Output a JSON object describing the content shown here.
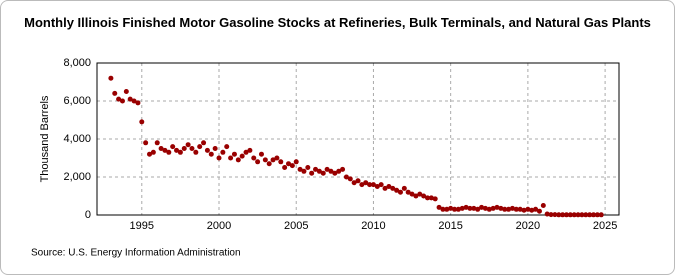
{
  "chart_data": {
    "type": "scatter",
    "title": "Monthly Illinois Finished Motor Gasoline Stocks at Refineries, Bulk Terminals, and Natural Gas Plants",
    "y_label": "Thousand Barrels",
    "source": "Source: U.S. Energy Information Administration",
    "xlim": [
      1992.1,
      2025.9
    ],
    "xticks": [
      1995,
      2000,
      2005,
      2010,
      2015,
      2020,
      2025
    ],
    "ylim": [
      0,
      8000
    ],
    "yticks": [
      0,
      {
        "value": 2000,
        "label": "2,000"
      },
      {
        "value": 4000,
        "label": "4,000"
      },
      {
        "value": 6000,
        "label": "6,000"
      },
      {
        "value": 8000,
        "label": "8,000"
      }
    ],
    "grid": true,
    "color": "#990000",
    "x": [
      1993,
      1993.25,
      1993.5,
      1993.75,
      1994,
      1994.25,
      1994.5,
      1994.75,
      1995,
      1995.25,
      1995.5,
      1995.75,
      1996,
      1996.25,
      1996.5,
      1996.75,
      1997,
      1997.25,
      1997.5,
      1997.75,
      1998,
      1998.25,
      1998.5,
      1998.75,
      1999,
      1999.25,
      1999.5,
      1999.75,
      2000,
      2000.25,
      2000.5,
      2000.75,
      2001,
      2001.25,
      2001.5,
      2001.75,
      2002,
      2002.25,
      2002.5,
      2002.75,
      2003,
      2003.25,
      2003.5,
      2003.75,
      2004,
      2004.25,
      2004.5,
      2004.75,
      2005,
      2005.25,
      2005.5,
      2005.75,
      2006,
      2006.25,
      2006.5,
      2006.75,
      2007,
      2007.25,
      2007.5,
      2007.75,
      2008,
      2008.25,
      2008.5,
      2008.75,
      2009,
      2009.25,
      2009.5,
      2009.75,
      2010,
      2010.25,
      2010.5,
      2010.75,
      2011,
      2011.25,
      2011.5,
      2011.75,
      2012,
      2012.25,
      2012.5,
      2012.75,
      2013,
      2013.25,
      2013.5,
      2013.75,
      2014,
      2014.25,
      2014.5,
      2014.75,
      2015,
      2015.25,
      2015.5,
      2015.75,
      2016,
      2016.25,
      2016.5,
      2016.75,
      2017,
      2017.25,
      2017.5,
      2017.75,
      2018,
      2018.25,
      2018.5,
      2018.75,
      2019,
      2019.25,
      2019.5,
      2019.75,
      2020,
      2020.25,
      2020.5,
      2020.75,
      2021,
      2021.25,
      2021.5,
      2021.75,
      2022,
      2022.25,
      2022.5,
      2022.75,
      2023,
      2023.25,
      2023.5,
      2023.75,
      2024,
      2024.25,
      2024.5,
      2024.75
    ],
    "values": [
      7200,
      6400,
      6100,
      6000,
      6500,
      6100,
      6000,
      5900,
      4900,
      3800,
      3200,
      3300,
      3800,
      3500,
      3400,
      3300,
      3600,
      3400,
      3300,
      3500,
      3700,
      3500,
      3300,
      3600,
      3800,
      3400,
      3200,
      3500,
      3000,
      3300,
      3600,
      3000,
      3200,
      2900,
      3100,
      3300,
      3400,
      3000,
      2800,
      3200,
      2900,
      2700,
      2900,
      3000,
      2800,
      2500,
      2700,
      2600,
      2800,
      2400,
      2300,
      2500,
      2200,
      2400,
      2300,
      2200,
      2400,
      2300,
      2200,
      2300,
      2400,
      2000,
      1900,
      1700,
      1800,
      1600,
      1700,
      1600,
      1600,
      1500,
      1600,
      1400,
      1500,
      1400,
      1300,
      1200,
      1400,
      1200,
      1100,
      1000,
      1100,
      1000,
      900,
      900,
      850,
      400,
      300,
      300,
      350,
      300,
      300,
      350,
      400,
      350,
      350,
      300,
      400,
      350,
      300,
      350,
      400,
      350,
      300,
      300,
      350,
      300,
      300,
      250,
      300,
      250,
      300,
      200,
      500,
      50,
      20,
      20,
      10,
      10,
      10,
      10,
      10,
      10,
      10,
      10,
      10,
      10,
      10,
      10
    ]
  }
}
